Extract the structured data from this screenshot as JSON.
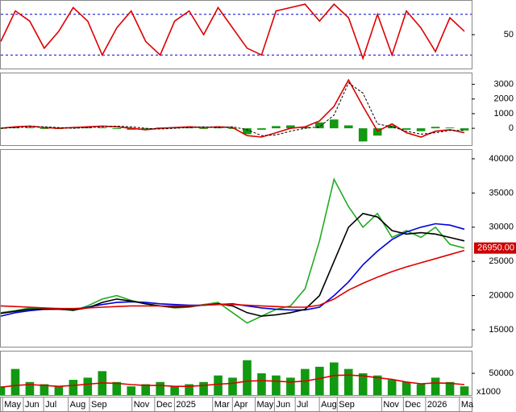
{
  "chart_data": [
    {
      "type": "line",
      "xlim": [
        0,
        97.5
      ],
      "ylim": [
        0,
        100
      ],
      "yticks": [
        50
      ],
      "hlines": [
        20,
        80
      ],
      "x": [
        0,
        3,
        6,
        9,
        12,
        15,
        18,
        21,
        24,
        27,
        30,
        33,
        36,
        39,
        42,
        45,
        48,
        51,
        54,
        57,
        60,
        63,
        66,
        69,
        72,
        75,
        78,
        81,
        84,
        87,
        90,
        93,
        96
      ],
      "series": [
        {
          "name": "Stochastic",
          "color": "#dd0000",
          "style": "line",
          "values": [
            40,
            85,
            70,
            30,
            55,
            90,
            70,
            20,
            60,
            85,
            40,
            20,
            70,
            85,
            50,
            90,
            60,
            30,
            20,
            85,
            90,
            95,
            70,
            95,
            75,
            15,
            80,
            20,
            85,
            60,
            25,
            75,
            55
          ]
        }
      ]
    },
    {
      "type": "line",
      "xlim": [
        0,
        97.5
      ],
      "ylim": [
        -1150,
        3750
      ],
      "yticks": [
        0,
        1000,
        2000,
        3000
      ],
      "x": [
        0,
        3,
        6,
        9,
        12,
        15,
        18,
        21,
        24,
        27,
        30,
        33,
        36,
        39,
        42,
        45,
        48,
        51,
        54,
        57,
        60,
        63,
        66,
        69,
        72,
        75,
        78,
        81,
        84,
        87,
        90,
        93,
        96
      ],
      "series": [
        {
          "name": "Histogram",
          "color": "#119911",
          "style": "bar",
          "values": [
            0,
            50,
            50,
            -50,
            -50,
            50,
            50,
            50,
            -50,
            -100,
            -100,
            50,
            50,
            50,
            -50,
            50,
            -50,
            -400,
            -100,
            150,
            200,
            100,
            400,
            600,
            200,
            -900,
            -500,
            200,
            -100,
            -200,
            100,
            50,
            -150
          ]
        },
        {
          "name": "MACD",
          "color": "#dd0000",
          "style": "line",
          "values": [
            0,
            100,
            150,
            50,
            0,
            50,
            100,
            150,
            100,
            0,
            -100,
            0,
            50,
            100,
            50,
            100,
            50,
            -500,
            -600,
            -300,
            0,
            100,
            500,
            1500,
            3300,
            1500,
            -200,
            300,
            -300,
            -600,
            -200,
            -100,
            -300
          ]
        },
        {
          "name": "Signal",
          "color": "#000000",
          "style": "dash",
          "values": [
            0,
            50,
            100,
            100,
            50,
            0,
            50,
            100,
            150,
            100,
            0,
            -50,
            0,
            50,
            100,
            50,
            100,
            -100,
            -500,
            -450,
            -200,
            0,
            100,
            900,
            3100,
            2400,
            300,
            100,
            -200,
            -400,
            -300,
            -150,
            -150
          ]
        }
      ]
    },
    {
      "type": "line",
      "xlim": [
        0,
        97.5
      ],
      "ylim": [
        12530,
        41290
      ],
      "yticks": [
        15000,
        20000,
        25000,
        30000,
        35000,
        40000
      ],
      "last_label": {
        "value": 26950,
        "label": "26950.00"
      },
      "x": [
        0,
        3,
        6,
        9,
        12,
        15,
        18,
        21,
        24,
        27,
        30,
        33,
        36,
        39,
        42,
        45,
        48,
        51,
        54,
        57,
        60,
        63,
        66,
        69,
        72,
        75,
        78,
        81,
        84,
        87,
        90,
        93,
        96
      ],
      "series": [
        {
          "name": "Price",
          "color": "#22aa22",
          "style": "line",
          "values": [
            17500,
            17800,
            18200,
            18000,
            18100,
            17800,
            18500,
            19500,
            20000,
            19300,
            18800,
            18500,
            18200,
            18300,
            18700,
            19000,
            17500,
            16000,
            17000,
            18000,
            18500,
            21000,
            28000,
            37000,
            33000,
            30000,
            32000,
            28500,
            29500,
            28500,
            30000,
            27500,
            26950
          ]
        },
        {
          "name": "MA50",
          "color": "#0000dd",
          "style": "line",
          "values": [
            17000,
            17500,
            17800,
            18000,
            18100,
            18000,
            18300,
            18700,
            19000,
            19100,
            19000,
            18800,
            18700,
            18600,
            18600,
            18700,
            18800,
            18500,
            18200,
            18000,
            17900,
            17900,
            18300,
            20000,
            22000,
            24500,
            26500,
            28200,
            29300,
            30000,
            30500,
            30300,
            29700
          ]
        },
        {
          "name": "MA20",
          "color": "#000000",
          "style": "line",
          "values": [
            17400,
            17700,
            18000,
            18000,
            18000,
            17900,
            18200,
            19000,
            19500,
            19200,
            18800,
            18500,
            18300,
            18400,
            18600,
            18800,
            18500,
            17500,
            17000,
            17200,
            17500,
            18000,
            20000,
            25000,
            30000,
            32000,
            31500,
            29500,
            29000,
            29200,
            29000,
            28500,
            28000
          ]
        },
        {
          "name": "MA200",
          "color": "#dd0000",
          "style": "line",
          "values": [
            18500,
            18400,
            18300,
            18200,
            18100,
            18100,
            18200,
            18300,
            18400,
            18500,
            18500,
            18500,
            18500,
            18500,
            18600,
            18700,
            18700,
            18600,
            18500,
            18400,
            18300,
            18300,
            18600,
            19500,
            20800,
            21800,
            22700,
            23500,
            24200,
            24800,
            25400,
            26000,
            26600
          ]
        }
      ]
    },
    {
      "type": "bar",
      "xlim": [
        0,
        97.5
      ],
      "ylim": [
        0,
        100000
      ],
      "yticks": [
        50000
      ],
      "unit": "x1000",
      "xticks": [
        {
          "value": 0.7,
          "label": "May"
        },
        {
          "value": 5,
          "label": "Jun"
        },
        {
          "value": 9.2,
          "label": "Jul"
        },
        {
          "value": 14.3,
          "label": "Aug"
        },
        {
          "value": 18.7,
          "label": "Sep"
        },
        {
          "value": 27.5,
          "label": "Nov"
        },
        {
          "value": 32.2,
          "label": "Dec"
        },
        {
          "value": 36.3,
          "label": "2025"
        },
        {
          "value": 44.2,
          "label": "Mar"
        },
        {
          "value": 48.3,
          "label": "Apr"
        },
        {
          "value": 53,
          "label": "May"
        },
        {
          "value": 57,
          "label": "Jun"
        },
        {
          "value": 61.3,
          "label": "Jul"
        },
        {
          "value": 66.3,
          "label": "Aug"
        },
        {
          "value": 70,
          "label": "Sep"
        },
        {
          "value": 79.2,
          "label": "Nov"
        },
        {
          "value": 83.7,
          "label": "Dec"
        },
        {
          "value": 88.3,
          "label": "2026"
        },
        {
          "value": 95.3,
          "label": "Ma"
        }
      ],
      "x": [
        0,
        3,
        6,
        9,
        12,
        15,
        18,
        21,
        24,
        27,
        30,
        33,
        36,
        39,
        42,
        45,
        48,
        51,
        54,
        57,
        60,
        63,
        66,
        69,
        72,
        75,
        78,
        81,
        84,
        87,
        90,
        93,
        96
      ],
      "series": [
        {
          "name": "Volume",
          "color": "#119911",
          "style": "bar",
          "values": [
            20000,
            60000,
            30000,
            25000,
            20000,
            35000,
            40000,
            55000,
            30000,
            20000,
            25000,
            30000,
            20000,
            25000,
            30000,
            45000,
            40000,
            80000,
            50000,
            45000,
            40000,
            60000,
            65000,
            75000,
            60000,
            50000,
            45000,
            35000,
            30000,
            25000,
            40000,
            30000,
            20000
          ]
        },
        {
          "name": "Volume MA",
          "color": "#dd0000",
          "style": "line",
          "values": [
            18000,
            22000,
            24000,
            22000,
            20000,
            22000,
            25000,
            28000,
            27000,
            24000,
            22000,
            22000,
            20000,
            20000,
            22000,
            25000,
            27000,
            32000,
            33000,
            32000,
            30000,
            32000,
            38000,
            45000,
            46000,
            44000,
            40000,
            36000,
            30000,
            26000,
            28000,
            27000,
            24000
          ]
        }
      ]
    }
  ]
}
